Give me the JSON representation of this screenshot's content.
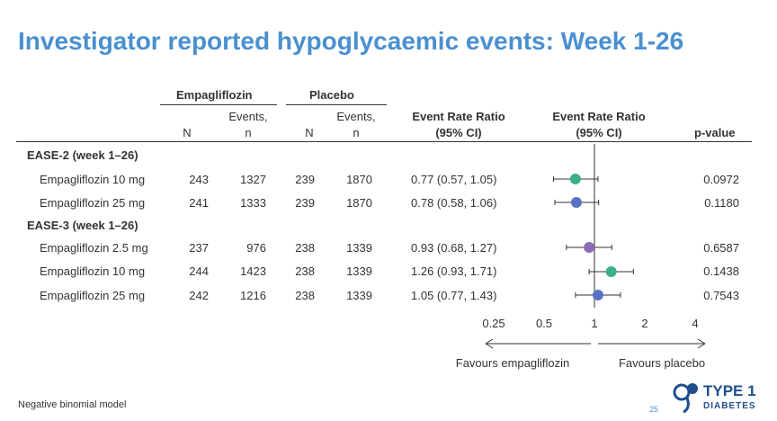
{
  "title": "Investigator reported hypoglycaemic events: Week 1-26",
  "group_headers": {
    "empagliflozin": "Empagliflozin",
    "placebo": "Placebo"
  },
  "columns": {
    "n": "N",
    "events_line1": "Events,",
    "events_line2": "n",
    "ratio_line1": "Event Rate Ratio",
    "ratio_line2": "(95% CI)",
    "pvalue": "p-value"
  },
  "sections": [
    {
      "label": "EASE-2 (week 1–26)",
      "rows": [
        {
          "label": "Empagliflozin 10 mg",
          "n_emp": "243",
          "ev_emp": "1327",
          "n_pla": "239",
          "ev_pla": "1870",
          "ratio": "0.77 (0.57, 1.05)",
          "p": "0.0972"
        },
        {
          "label": "Empagliflozin 25 mg",
          "n_emp": "241",
          "ev_emp": "1333",
          "n_pla": "239",
          "ev_pla": "1870",
          "ratio": "0.78 (0.58, 1.06)",
          "p": "0.1180"
        }
      ]
    },
    {
      "label": "EASE-3 (week 1–26)",
      "rows": [
        {
          "label": "Empagliflozin 2.5 mg",
          "n_emp": "237",
          "ev_emp": "976",
          "n_pla": "238",
          "ev_pla": "1339",
          "ratio": "0.93 (0.68, 1.27)",
          "p": "0.6587"
        },
        {
          "label": "Empagliflozin 10 mg",
          "n_emp": "244",
          "ev_emp": "1423",
          "n_pla": "238",
          "ev_pla": "1339",
          "ratio": "1.26 (0.93, 1.71)",
          "p": "0.1438"
        },
        {
          "label": "Empagliflozin 25 mg",
          "n_emp": "242",
          "ev_emp": "1216",
          "n_pla": "238",
          "ev_pla": "1339",
          "ratio": "1.05 (0.77, 1.43)",
          "p": "0.7543"
        }
      ]
    }
  ],
  "chart_data": {
    "type": "scatter",
    "subtype": "forest-plot",
    "xscale": "log",
    "xlim": [
      0.25,
      4
    ],
    "xticks": [
      "0.25",
      "0.5",
      "1",
      "2",
      "4"
    ],
    "xtick_values": [
      0.25,
      0.5,
      1,
      2,
      4
    ],
    "reference_line": 1,
    "points": [
      {
        "est": 0.77,
        "lo": 0.57,
        "hi": 1.05,
        "color": "#3dae8c"
      },
      {
        "est": 0.78,
        "lo": 0.58,
        "hi": 1.06,
        "color": "#5b72c4"
      },
      {
        "est": 0.93,
        "lo": 0.68,
        "hi": 1.27,
        "color": "#8e6bb5"
      },
      {
        "est": 1.26,
        "lo": 0.93,
        "hi": 1.71,
        "color": "#3dae8c"
      },
      {
        "est": 1.05,
        "lo": 0.77,
        "hi": 1.43,
        "color": "#5b72c4"
      }
    ],
    "favours_left": "Favours empagliflozin",
    "favours_right": "Favours placebo"
  },
  "footer": "Negative binomial model",
  "page_number": "25",
  "logo": {
    "line1": "TYPE 1",
    "line2": "DIABETES",
    "color": "#1f4e8c"
  }
}
